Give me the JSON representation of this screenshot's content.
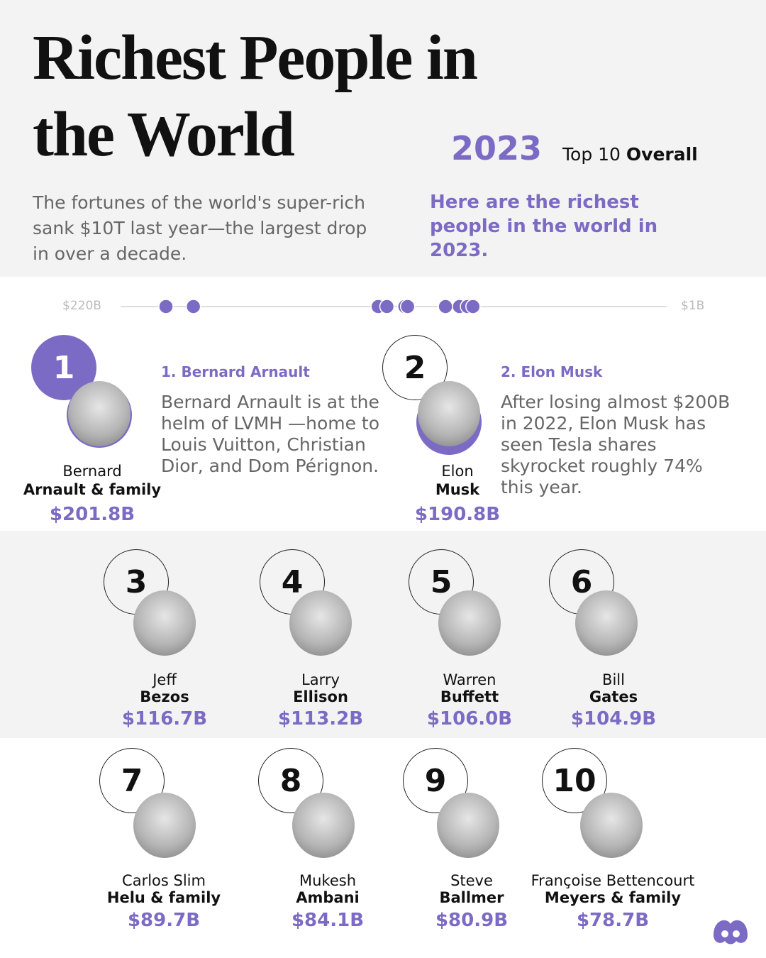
{
  "header": {
    "title": "Richest People in the World",
    "year": "2023",
    "subtitle_prefix": "Top 10",
    "subtitle_emphasis": "Overall"
  },
  "intro": {
    "left": "The fortunes of the world's super-rich sank $10T last year—the largest drop in over a decade.",
    "right": "Here are the richest people in the world in 2023."
  },
  "scale": {
    "start": {
      "value": 220,
      "label": "$220B"
    },
    "end": {
      "value": 1,
      "label": "$1B"
    }
  },
  "people": [
    {
      "rank": 1,
      "first": "Bernard",
      "last": "Arnault & family",
      "value": 201.8,
      "value_label": "$201.8B",
      "heading": "1. Bernard Arnault",
      "text": "Bernard Arnault is at the helm of LVMH —home to Louis Vuitton, Christian Dior, and Dom Pérignon."
    },
    {
      "rank": 2,
      "first": "Elon",
      "last": "Musk",
      "value": 190.8,
      "value_label": "$190.8B",
      "heading": "2. Elon Musk",
      "text": "After losing almost $200B in 2022, Elon Musk has seen Tesla shares skyrocket roughly 74% this year."
    },
    {
      "rank": 3,
      "first": "Jeff",
      "last": "Bezos",
      "value": 116.7,
      "value_label": "$116.7B"
    },
    {
      "rank": 4,
      "first": "Larry",
      "last": "Ellison",
      "value": 113.2,
      "value_label": "$113.2B"
    },
    {
      "rank": 5,
      "first": "Warren",
      "last": "Buffett",
      "value": 106.0,
      "value_label": "$106.0B"
    },
    {
      "rank": 6,
      "first": "Bill",
      "last": "Gates",
      "value": 104.9,
      "value_label": "$104.9B"
    },
    {
      "rank": 7,
      "first": "Carlos Slim",
      "last": "Helu & family",
      "value": 89.7,
      "value_label": "$89.7B"
    },
    {
      "rank": 8,
      "first": "Mukesh",
      "last": "Ambani",
      "value": 84.1,
      "value_label": "$84.1B"
    },
    {
      "rank": 9,
      "first": "Steve",
      "last": "Ballmer",
      "value": 80.9,
      "value_label": "$80.9B"
    },
    {
      "rank": 10,
      "first": "Françoise Bettencourt",
      "last": "Meyers & family",
      "value": 78.7,
      "value_label": "$78.7B"
    }
  ]
}
